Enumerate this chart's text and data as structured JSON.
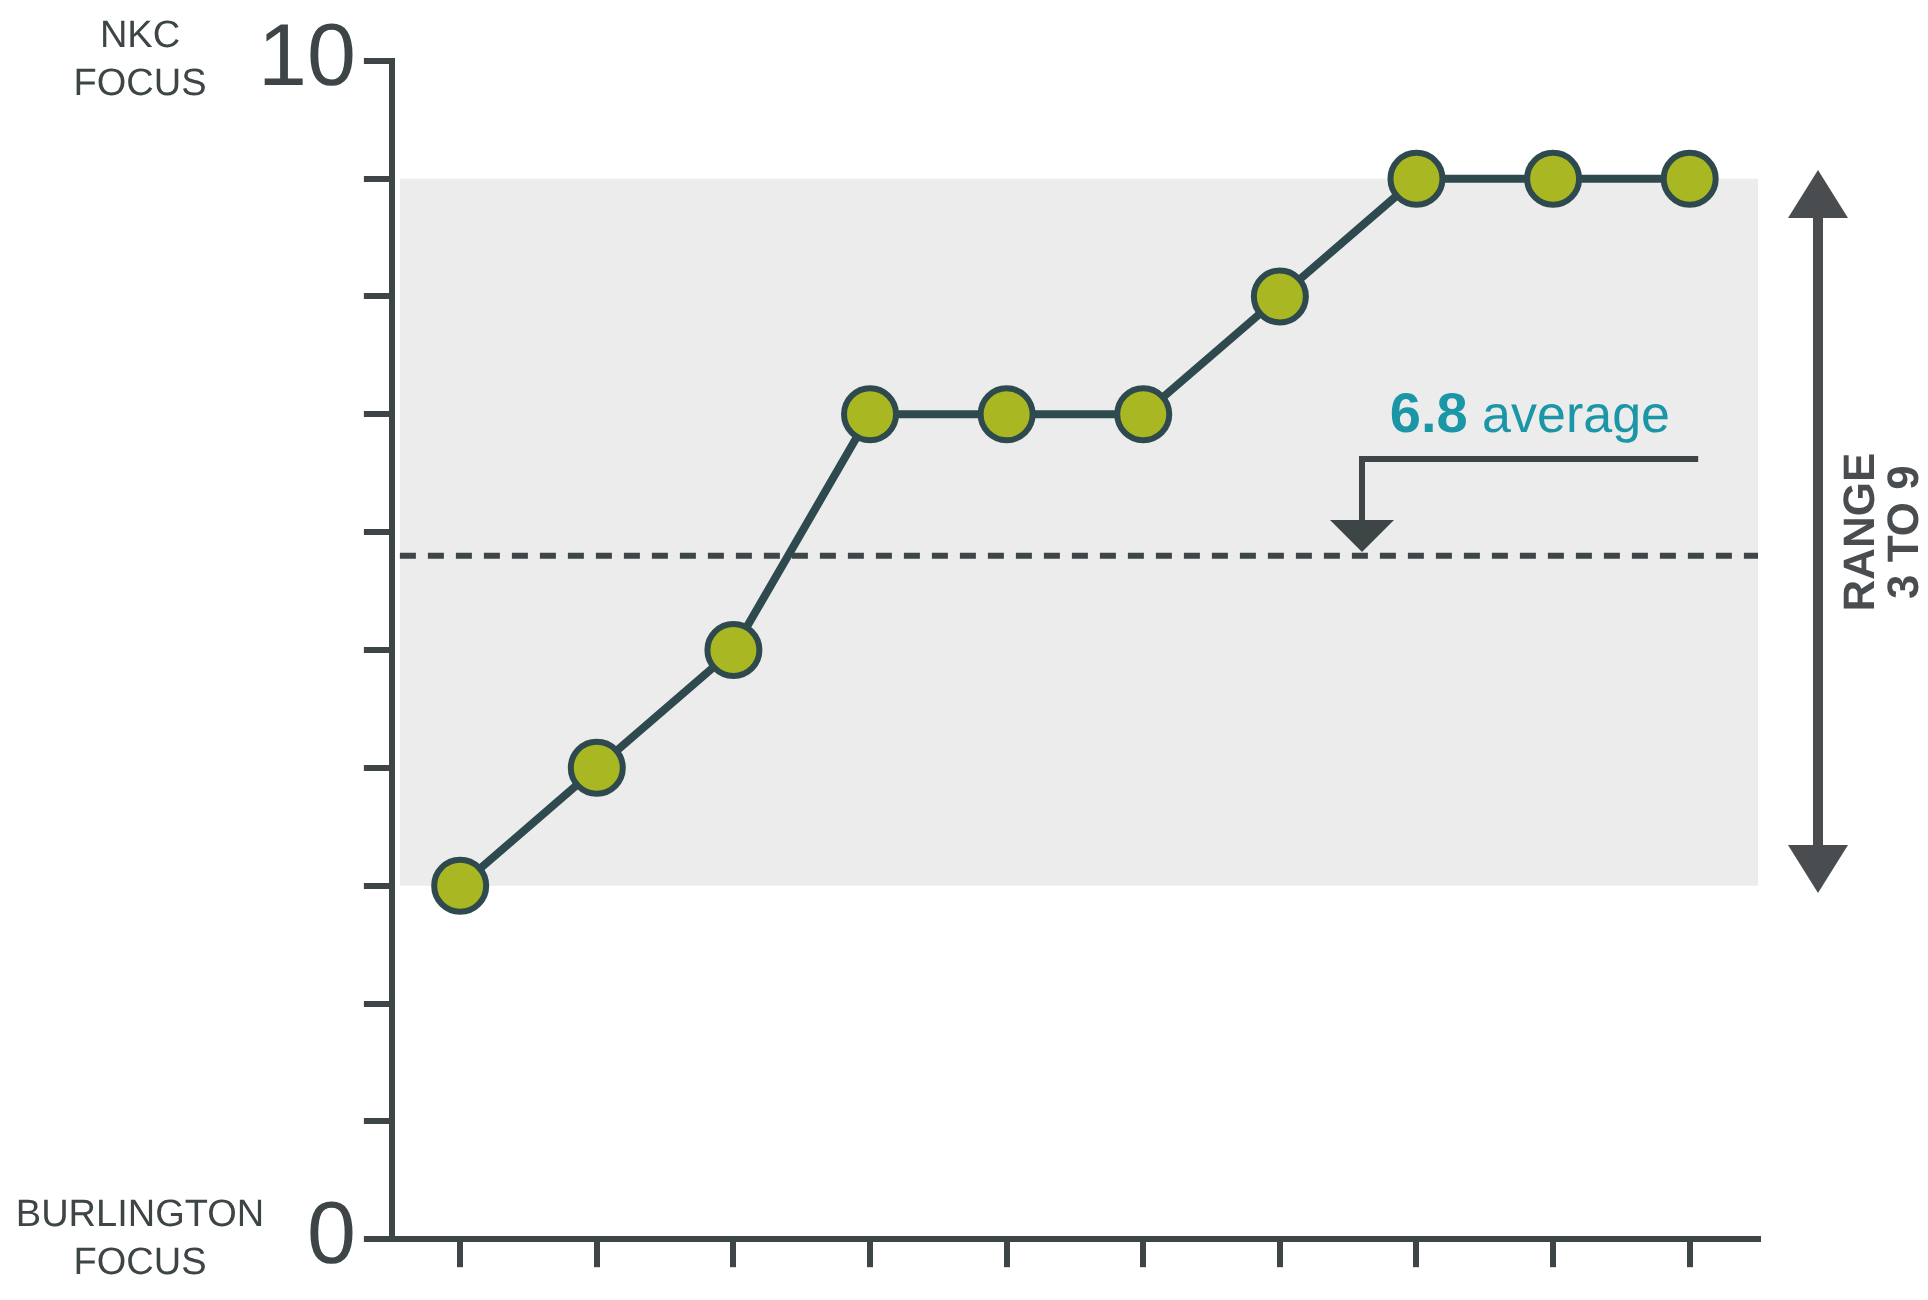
{
  "chart_data": {
    "type": "line",
    "categories": [
      null,
      null,
      null,
      null,
      null,
      null,
      null,
      null,
      null,
      null
    ],
    "series": [
      {
        "color": "#2f4a4e",
        "values": [
          3,
          4,
          5,
          7,
          7,
          7,
          8,
          9,
          9,
          9
        ]
      }
    ],
    "marker": "circle",
    "line_style": "solid",
    "ylim": [
      0,
      10
    ],
    "yticks": [
      0,
      {
        "value": 1,
        "label": null
      },
      {
        "value": 2,
        "label": null
      },
      {
        "value": 3,
        "label": null
      },
      {
        "value": 4,
        "label": null
      },
      {
        "value": 5,
        "label": null
      },
      {
        "value": 6,
        "label": null
      },
      {
        "value": 7,
        "label": null
      },
      {
        "value": 8,
        "label": null
      },
      {
        "value": 9,
        "label": null
      },
      10
    ],
    "tick_labels": "y",
    "grid": false,
    "legend": false,
    "bands": [
      {
        "axis": "y",
        "from": 3,
        "to": 9,
        "label": "RANGE 3 TO 9",
        "color": "#ececec"
      }
    ],
    "ref_lines": [
      {
        "axis": "y",
        "value": 5.8,
        "label": "6.8 average",
        "color": "#3d4547",
        "line_style": "dashed"
      }
    ],
    "annotations": [
      "NKC FOCUS",
      "BURLINGTON FOCUS"
    ]
  }
}
